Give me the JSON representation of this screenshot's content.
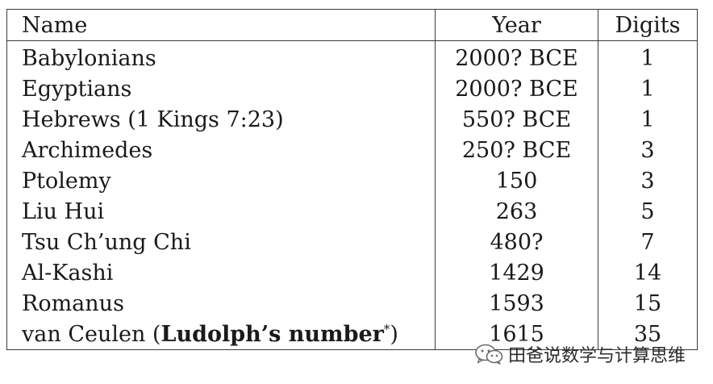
{
  "table": {
    "headers": {
      "name": "Name",
      "year": "Year",
      "digits": "Digits"
    },
    "rows": [
      {
        "name": "Babylonians",
        "year": "2000? BCE",
        "digits": "1"
      },
      {
        "name": "Egyptians",
        "year": "2000? BCE",
        "digits": "1"
      },
      {
        "name": "Hebrews (1 Kings 7:23)",
        "year": "550? BCE",
        "digits": "1"
      },
      {
        "name": "Archimedes",
        "year": "250? BCE",
        "digits": "3"
      },
      {
        "name": "Ptolemy",
        "year": "150",
        "digits": "3"
      },
      {
        "name": "Liu Hui",
        "year": "263",
        "digits": "5"
      },
      {
        "name": "Tsu Ch’ung Chi",
        "year": "480?",
        "digits": "7"
      },
      {
        "name": "Al-Kashi",
        "year": "1429",
        "digits": "14"
      },
      {
        "name": "Romanus",
        "year": "1593",
        "digits": "15"
      },
      {
        "name_prefix": "van Ceulen (",
        "name_bold": "Ludolph’s number",
        "name_sup": "*",
        "name_suffix": ")",
        "year": "1615",
        "digits": "35"
      }
    ]
  },
  "watermark": {
    "icon": "wechat-icon",
    "text": "田爸说数学与计算思维"
  }
}
